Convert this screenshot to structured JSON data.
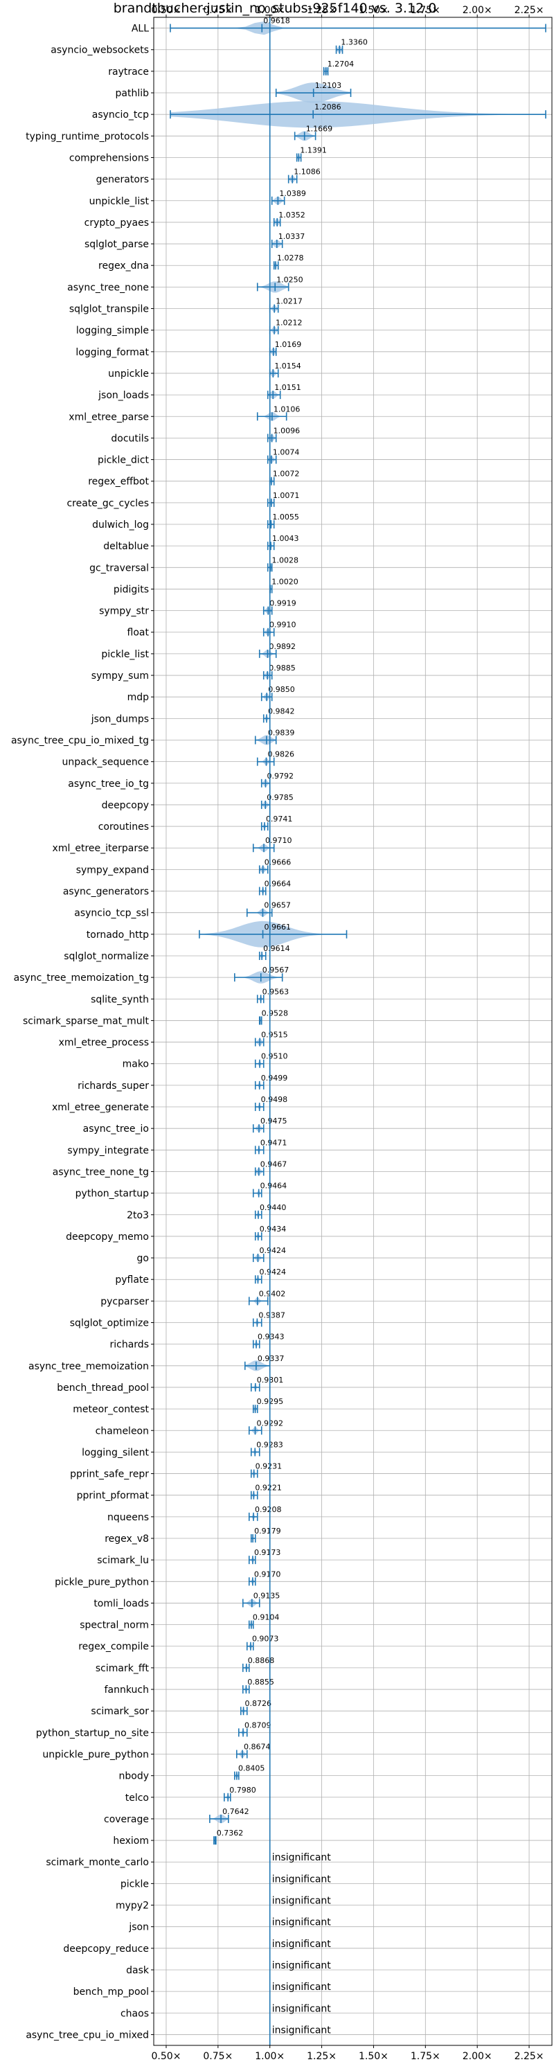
{
  "chart_data": {
    "type": "violin",
    "title": "brandtbucher-justin_no_stubs-925f140 vs. 3.12.0",
    "xlim": [
      0.44,
      2.36
    ],
    "xticks": [
      0.5,
      0.75,
      1.0,
      1.25,
      1.5,
      1.75,
      2.0,
      2.25
    ],
    "xtick_labels": [
      "0.50×",
      "0.75×",
      "1.00×",
      "1.25×",
      "1.50×",
      "1.75×",
      "2.00×",
      "2.25×"
    ],
    "reference_line": 1.0,
    "grid": true,
    "colors": {
      "violin": "#aac9e6",
      "marker": "#1f77b4",
      "reference": "#1f77b4"
    },
    "insignificant_label": "insignificant",
    "rows": [
      {
        "name": "ALL",
        "value": 0.9618,
        "label": "0.9618",
        "min": 0.52,
        "max": 2.33,
        "spread": 0.1
      },
      {
        "name": "asyncio_websockets",
        "value": 1.336,
        "label": "1.3360",
        "min": 1.32,
        "max": 1.35,
        "spread": 0.02
      },
      {
        "name": "raytrace",
        "value": 1.2704,
        "label": "1.2704",
        "min": 1.26,
        "max": 1.28,
        "spread": 0.02
      },
      {
        "name": "pathlib",
        "value": 1.2103,
        "label": "1.2103",
        "min": 1.03,
        "max": 1.39,
        "spread": 0.18
      },
      {
        "name": "asyncio_tcp",
        "value": 1.2086,
        "label": "1.2086",
        "min": 0.52,
        "max": 2.33,
        "spread": 0.8
      },
      {
        "name": "typing_runtime_protocols",
        "value": 1.1669,
        "label": "1.1669",
        "min": 1.12,
        "max": 1.22,
        "spread": 0.05
      },
      {
        "name": "comprehensions",
        "value": 1.1391,
        "label": "1.1391",
        "min": 1.13,
        "max": 1.15,
        "spread": 0.01
      },
      {
        "name": "generators",
        "value": 1.1086,
        "label": "1.1086",
        "min": 1.09,
        "max": 1.13,
        "spread": 0.02
      },
      {
        "name": "unpickle_list",
        "value": 1.0389,
        "label": "1.0389",
        "min": 1.01,
        "max": 1.07,
        "spread": 0.03
      },
      {
        "name": "crypto_pyaes",
        "value": 1.0352,
        "label": "1.0352",
        "min": 1.02,
        "max": 1.05,
        "spread": 0.02
      },
      {
        "name": "sqlglot_parse",
        "value": 1.0337,
        "label": "1.0337",
        "min": 1.01,
        "max": 1.06,
        "spread": 0.03
      },
      {
        "name": "regex_dna",
        "value": 1.0278,
        "label": "1.0278",
        "min": 1.02,
        "max": 1.04,
        "spread": 0.01
      },
      {
        "name": "async_tree_none",
        "value": 1.025,
        "label": "1.0250",
        "min": 0.94,
        "max": 1.09,
        "spread": 0.07
      },
      {
        "name": "sqlglot_transpile",
        "value": 1.0217,
        "label": "1.0217",
        "min": 1.0,
        "max": 1.04,
        "spread": 0.02
      },
      {
        "name": "logging_simple",
        "value": 1.0212,
        "label": "1.0212",
        "min": 1.0,
        "max": 1.04,
        "spread": 0.02
      },
      {
        "name": "logging_format",
        "value": 1.0169,
        "label": "1.0169",
        "min": 1.0,
        "max": 1.03,
        "spread": 0.02
      },
      {
        "name": "unpickle",
        "value": 1.0154,
        "label": "1.0154",
        "min": 1.0,
        "max": 1.04,
        "spread": 0.02
      },
      {
        "name": "json_loads",
        "value": 1.0151,
        "label": "1.0151",
        "min": 0.99,
        "max": 1.05,
        "spread": 0.03
      },
      {
        "name": "xml_etree_parse",
        "value": 1.0106,
        "label": "1.0106",
        "min": 0.94,
        "max": 1.08,
        "spread": 0.04
      },
      {
        "name": "docutils",
        "value": 1.0096,
        "label": "1.0096",
        "min": 0.99,
        "max": 1.03,
        "spread": 0.02
      },
      {
        "name": "pickle_dict",
        "value": 1.0074,
        "label": "1.0074",
        "min": 0.99,
        "max": 1.03,
        "spread": 0.02
      },
      {
        "name": "regex_effbot",
        "value": 1.0072,
        "label": "1.0072",
        "min": 1.0,
        "max": 1.02,
        "spread": 0.01
      },
      {
        "name": "create_gc_cycles",
        "value": 1.0071,
        "label": "1.0071",
        "min": 0.99,
        "max": 1.02,
        "spread": 0.01
      },
      {
        "name": "dulwich_log",
        "value": 1.0055,
        "label": "1.0055",
        "min": 0.99,
        "max": 1.02,
        "spread": 0.01
      },
      {
        "name": "deltablue",
        "value": 1.0043,
        "label": "1.0043",
        "min": 0.99,
        "max": 1.02,
        "spread": 0.01
      },
      {
        "name": "gc_traversal",
        "value": 1.0028,
        "label": "1.0028",
        "min": 0.99,
        "max": 1.01,
        "spread": 0.01
      },
      {
        "name": "pidigits",
        "value": 1.002,
        "label": "1.0020",
        "min": 1.0,
        "max": 1.01,
        "spread": 0.005
      },
      {
        "name": "sympy_str",
        "value": 0.9919,
        "label": "0.9919",
        "min": 0.97,
        "max": 1.01,
        "spread": 0.02
      },
      {
        "name": "float",
        "value": 0.991,
        "label": "0.9910",
        "min": 0.97,
        "max": 1.02,
        "spread": 0.02
      },
      {
        "name": "pickle_list",
        "value": 0.9892,
        "label": "0.9892",
        "min": 0.95,
        "max": 1.03,
        "spread": 0.03
      },
      {
        "name": "sympy_sum",
        "value": 0.9885,
        "label": "0.9885",
        "min": 0.97,
        "max": 1.01,
        "spread": 0.02
      },
      {
        "name": "mdp",
        "value": 0.985,
        "label": "0.9850",
        "min": 0.96,
        "max": 1.01,
        "spread": 0.02
      },
      {
        "name": "json_dumps",
        "value": 0.9842,
        "label": "0.9842",
        "min": 0.97,
        "max": 1.0,
        "spread": 0.01
      },
      {
        "name": "async_tree_cpu_io_mixed_tg",
        "value": 0.9839,
        "label": "0.9839",
        "min": 0.93,
        "max": 1.03,
        "spread": 0.05
      },
      {
        "name": "unpack_sequence",
        "value": 0.9826,
        "label": "0.9826",
        "min": 0.94,
        "max": 1.02,
        "spread": 0.02
      },
      {
        "name": "async_tree_io_tg",
        "value": 0.9792,
        "label": "0.9792",
        "min": 0.96,
        "max": 1.0,
        "spread": 0.02
      },
      {
        "name": "deepcopy",
        "value": 0.9785,
        "label": "0.9785",
        "min": 0.96,
        "max": 1.0,
        "spread": 0.02
      },
      {
        "name": "coroutines",
        "value": 0.9741,
        "label": "0.9741",
        "min": 0.96,
        "max": 0.99,
        "spread": 0.01
      },
      {
        "name": "xml_etree_iterparse",
        "value": 0.971,
        "label": "0.9710",
        "min": 0.92,
        "max": 1.02,
        "spread": 0.03
      },
      {
        "name": "sympy_expand",
        "value": 0.9666,
        "label": "0.9666",
        "min": 0.95,
        "max": 0.99,
        "spread": 0.02
      },
      {
        "name": "async_generators",
        "value": 0.9664,
        "label": "0.9664",
        "min": 0.95,
        "max": 0.98,
        "spread": 0.01
      },
      {
        "name": "asyncio_tcp_ssl",
        "value": 0.9657,
        "label": "0.9657",
        "min": 0.89,
        "max": 1.01,
        "spread": 0.03
      },
      {
        "name": "tornado_http",
        "value": 0.9661,
        "label": "0.9661",
        "min": 0.66,
        "max": 1.37,
        "spread": 0.25
      },
      {
        "name": "sqlglot_normalize",
        "value": 0.9614,
        "label": "0.9614",
        "min": 0.95,
        "max": 0.98,
        "spread": 0.01
      },
      {
        "name": "async_tree_memoization_tg",
        "value": 0.9567,
        "label": "0.9567",
        "min": 0.83,
        "max": 1.06,
        "spread": 0.08
      },
      {
        "name": "sqlite_synth",
        "value": 0.9563,
        "label": "0.9563",
        "min": 0.94,
        "max": 0.97,
        "spread": 0.01
      },
      {
        "name": "scimark_sparse_mat_mult",
        "value": 0.9528,
        "label": "0.9528",
        "min": 0.95,
        "max": 0.96,
        "spread": 0.005
      },
      {
        "name": "xml_etree_process",
        "value": 0.9515,
        "label": "0.9515",
        "min": 0.93,
        "max": 0.97,
        "spread": 0.02
      },
      {
        "name": "mako",
        "value": 0.951,
        "label": "0.9510",
        "min": 0.93,
        "max": 0.97,
        "spread": 0.01
      },
      {
        "name": "richards_super",
        "value": 0.9499,
        "label": "0.9499",
        "min": 0.93,
        "max": 0.97,
        "spread": 0.01
      },
      {
        "name": "xml_etree_generate",
        "value": 0.9498,
        "label": "0.9498",
        "min": 0.93,
        "max": 0.97,
        "spread": 0.01
      },
      {
        "name": "async_tree_io",
        "value": 0.9475,
        "label": "0.9475",
        "min": 0.92,
        "max": 0.97,
        "spread": 0.02
      },
      {
        "name": "sympy_integrate",
        "value": 0.9471,
        "label": "0.9471",
        "min": 0.93,
        "max": 0.97,
        "spread": 0.01
      },
      {
        "name": "async_tree_none_tg",
        "value": 0.9467,
        "label": "0.9467",
        "min": 0.93,
        "max": 0.97,
        "spread": 0.02
      },
      {
        "name": "python_startup",
        "value": 0.9464,
        "label": "0.9464",
        "min": 0.92,
        "max": 0.96,
        "spread": 0.01
      },
      {
        "name": "2to3",
        "value": 0.944,
        "label": "0.9440",
        "min": 0.93,
        "max": 0.96,
        "spread": 0.01
      },
      {
        "name": "deepcopy_memo",
        "value": 0.9434,
        "label": "0.9434",
        "min": 0.93,
        "max": 0.96,
        "spread": 0.01
      },
      {
        "name": "go",
        "value": 0.9424,
        "label": "0.9424",
        "min": 0.92,
        "max": 0.97,
        "spread": 0.02
      },
      {
        "name": "pyflate",
        "value": 0.9424,
        "label": "0.9424",
        "min": 0.93,
        "max": 0.96,
        "spread": 0.01
      },
      {
        "name": "pycparser",
        "value": 0.9402,
        "label": "0.9402",
        "min": 0.9,
        "max": 0.99,
        "spread": 0.02
      },
      {
        "name": "sqlglot_optimize",
        "value": 0.9387,
        "label": "0.9387",
        "min": 0.92,
        "max": 0.96,
        "spread": 0.01
      },
      {
        "name": "richards",
        "value": 0.9343,
        "label": "0.9343",
        "min": 0.92,
        "max": 0.95,
        "spread": 0.01
      },
      {
        "name": "async_tree_memoization",
        "value": 0.9337,
        "label": "0.9337",
        "min": 0.88,
        "max": 1.0,
        "spread": 0.06
      },
      {
        "name": "bench_thread_pool",
        "value": 0.9301,
        "label": "0.9301",
        "min": 0.91,
        "max": 0.95,
        "spread": 0.01
      },
      {
        "name": "meteor_contest",
        "value": 0.9295,
        "label": "0.9295",
        "min": 0.92,
        "max": 0.94,
        "spread": 0.01
      },
      {
        "name": "chameleon",
        "value": 0.9292,
        "label": "0.9292",
        "min": 0.9,
        "max": 0.96,
        "spread": 0.02
      },
      {
        "name": "logging_silent",
        "value": 0.9283,
        "label": "0.9283",
        "min": 0.91,
        "max": 0.95,
        "spread": 0.01
      },
      {
        "name": "pprint_safe_repr",
        "value": 0.9231,
        "label": "0.9231",
        "min": 0.91,
        "max": 0.94,
        "spread": 0.01
      },
      {
        "name": "pprint_pformat",
        "value": 0.9221,
        "label": "0.9221",
        "min": 0.91,
        "max": 0.94,
        "spread": 0.01
      },
      {
        "name": "nqueens",
        "value": 0.9208,
        "label": "0.9208",
        "min": 0.9,
        "max": 0.94,
        "spread": 0.01
      },
      {
        "name": "regex_v8",
        "value": 0.9179,
        "label": "0.9179",
        "min": 0.91,
        "max": 0.93,
        "spread": 0.005
      },
      {
        "name": "scimark_lu",
        "value": 0.9173,
        "label": "0.9173",
        "min": 0.9,
        "max": 0.93,
        "spread": 0.01
      },
      {
        "name": "pickle_pure_python",
        "value": 0.917,
        "label": "0.9170",
        "min": 0.9,
        "max": 0.93,
        "spread": 0.01
      },
      {
        "name": "tomli_loads",
        "value": 0.9135,
        "label": "0.9135",
        "min": 0.87,
        "max": 0.95,
        "spread": 0.03
      },
      {
        "name": "spectral_norm",
        "value": 0.9104,
        "label": "0.9104",
        "min": 0.9,
        "max": 0.92,
        "spread": 0.01
      },
      {
        "name": "regex_compile",
        "value": 0.9073,
        "label": "0.9073",
        "min": 0.89,
        "max": 0.92,
        "spread": 0.01
      },
      {
        "name": "scimark_fft",
        "value": 0.8868,
        "label": "0.8868",
        "min": 0.87,
        "max": 0.9,
        "spread": 0.01
      },
      {
        "name": "fannkuch",
        "value": 0.8855,
        "label": "0.8855",
        "min": 0.87,
        "max": 0.9,
        "spread": 0.01
      },
      {
        "name": "scimark_sor",
        "value": 0.8726,
        "label": "0.8726",
        "min": 0.86,
        "max": 0.89,
        "spread": 0.01
      },
      {
        "name": "python_startup_no_site",
        "value": 0.8709,
        "label": "0.8709",
        "min": 0.85,
        "max": 0.89,
        "spread": 0.01
      },
      {
        "name": "unpickle_pure_python",
        "value": 0.8674,
        "label": "0.8674",
        "min": 0.84,
        "max": 0.89,
        "spread": 0.02
      },
      {
        "name": "nbody",
        "value": 0.8405,
        "label": "0.8405",
        "min": 0.83,
        "max": 0.85,
        "spread": 0.01
      },
      {
        "name": "telco",
        "value": 0.798,
        "label": "0.7980",
        "min": 0.78,
        "max": 0.81,
        "spread": 0.01
      },
      {
        "name": "coverage",
        "value": 0.7642,
        "label": "0.7642",
        "min": 0.71,
        "max": 0.8,
        "spread": 0.04
      },
      {
        "name": "hexiom",
        "value": 0.7362,
        "label": "0.7362",
        "min": 0.73,
        "max": 0.74,
        "spread": 0.005
      },
      {
        "name": "scimark_monte_carlo",
        "value": null,
        "label": "insignificant"
      },
      {
        "name": "pickle",
        "value": null,
        "label": "insignificant"
      },
      {
        "name": "mypy2",
        "value": null,
        "label": "insignificant"
      },
      {
        "name": "json",
        "value": null,
        "label": "insignificant"
      },
      {
        "name": "deepcopy_reduce",
        "value": null,
        "label": "insignificant"
      },
      {
        "name": "dask",
        "value": null,
        "label": "insignificant"
      },
      {
        "name": "bench_mp_pool",
        "value": null,
        "label": "insignificant"
      },
      {
        "name": "chaos",
        "value": null,
        "label": "insignificant"
      },
      {
        "name": "async_tree_cpu_io_mixed",
        "value": null,
        "label": "insignificant"
      }
    ]
  }
}
